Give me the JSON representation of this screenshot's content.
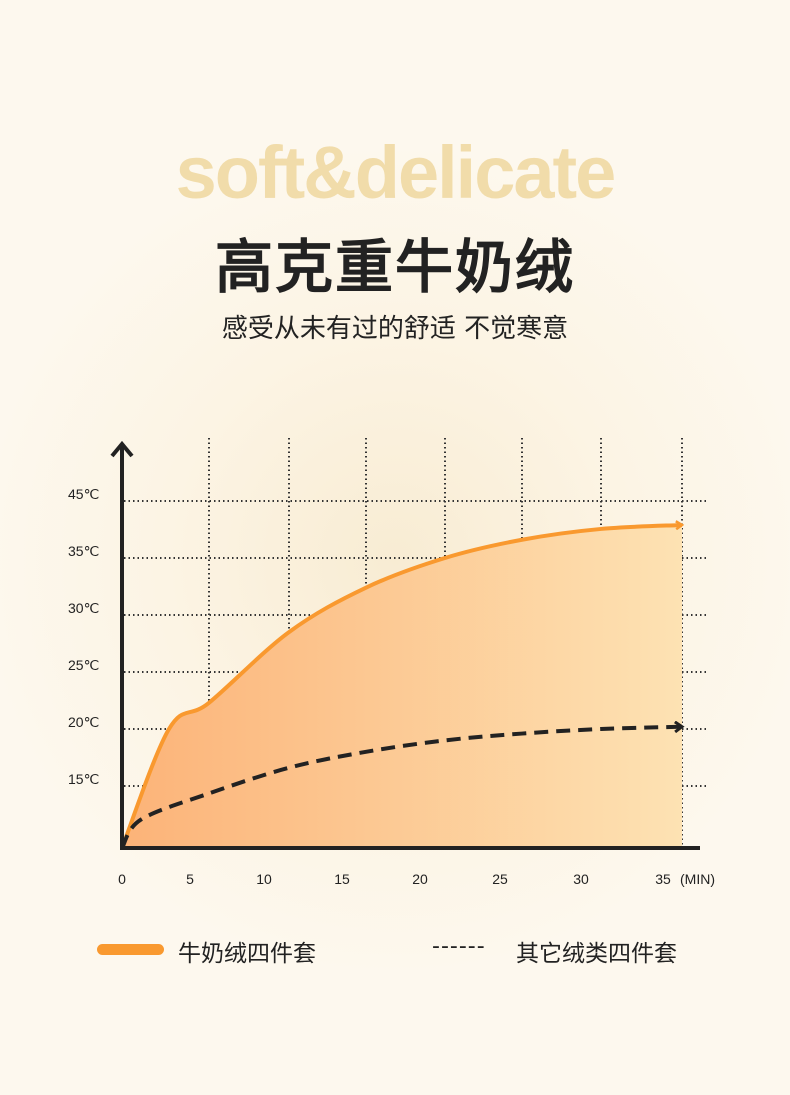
{
  "header": {
    "english": "soft&delicate",
    "title": "高克重牛奶绒",
    "subtitle": "感受从未有过的舒适 不觉寒意"
  },
  "chart_data": {
    "type": "area",
    "xlabel": "(MIN)",
    "x_ticks": [
      "0",
      "5",
      "10",
      "15",
      "20",
      "25",
      "30",
      "35"
    ],
    "y_ticks": [
      "15℃",
      "20℃",
      "25℃",
      "30℃",
      "35℃",
      "45℃"
    ],
    "xlim": [
      0,
      35
    ],
    "ylim": [
      10,
      45
    ],
    "grid": true,
    "legend_placement": "bottom",
    "series": [
      {
        "name": "牛奶绒四件套",
        "color": "#f9992f",
        "style": "solid-filled",
        "x": [
          0,
          2.7,
          5,
          10,
          15,
          20,
          25,
          30,
          35
        ],
        "y": [
          10,
          20,
          22.3,
          28.5,
          32.4,
          35,
          38.2,
          40.1,
          40.8
        ]
      },
      {
        "name": "其它绒类四件套",
        "color": "#222222",
        "style": "dashed",
        "x": [
          0,
          1.1,
          5,
          10,
          15,
          20,
          25,
          30,
          35
        ],
        "y": [
          10,
          12.3,
          14.4,
          16.6,
          18,
          19,
          19.6,
          20,
          20.2
        ]
      }
    ]
  },
  "legend": {
    "dash_glyph": "------"
  }
}
